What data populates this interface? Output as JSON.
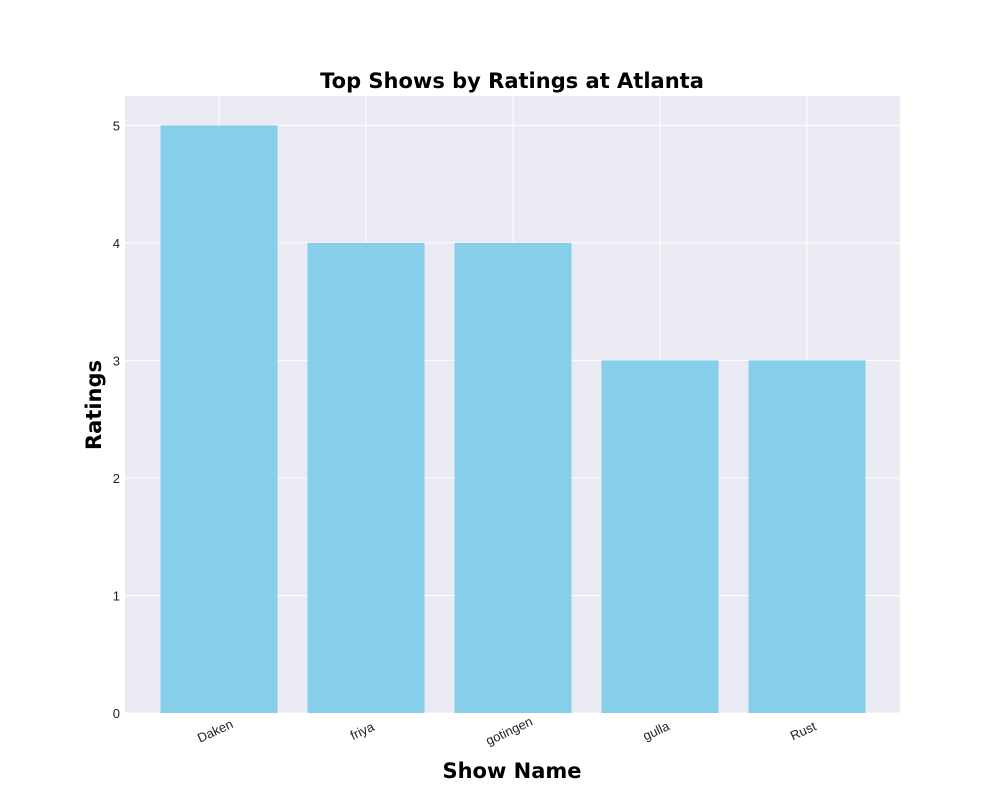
{
  "chart_data": {
    "type": "bar",
    "title": "Top Shows by Ratings at Atlanta",
    "xlabel": "Show Name",
    "ylabel": "Ratings",
    "categories": [
      "Daken",
      "friya",
      "gotingen",
      "gulla",
      "Rust"
    ],
    "values": [
      5,
      4,
      4,
      3,
      3
    ],
    "ylim": [
      0,
      5.25
    ],
    "yticks": [
      "0",
      "1",
      "2",
      "3",
      "4",
      "5"
    ],
    "grid": true,
    "colors": {
      "bar": "#87CEEB",
      "plot_background": "#EAEAF2",
      "grid": "#FFFFFF"
    }
  }
}
